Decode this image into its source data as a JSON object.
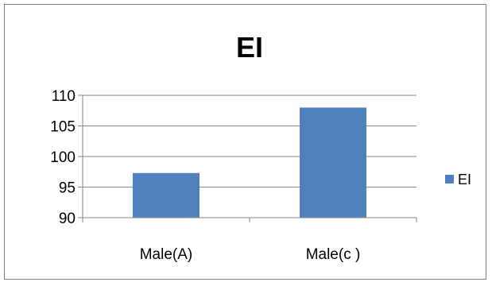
{
  "chart_data": {
    "type": "bar",
    "title": "EI",
    "categories": [
      "Male(A)",
      "Male(c )"
    ],
    "series": [
      {
        "name": "EI",
        "values": [
          97.3,
          108.0
        ],
        "color": "#4f81bd"
      }
    ],
    "xlabel": "",
    "ylabel": "",
    "ylim": [
      90,
      110
    ],
    "yticks": [
      90,
      95,
      100,
      105,
      110
    ],
    "grid": true,
    "legend": "right"
  }
}
